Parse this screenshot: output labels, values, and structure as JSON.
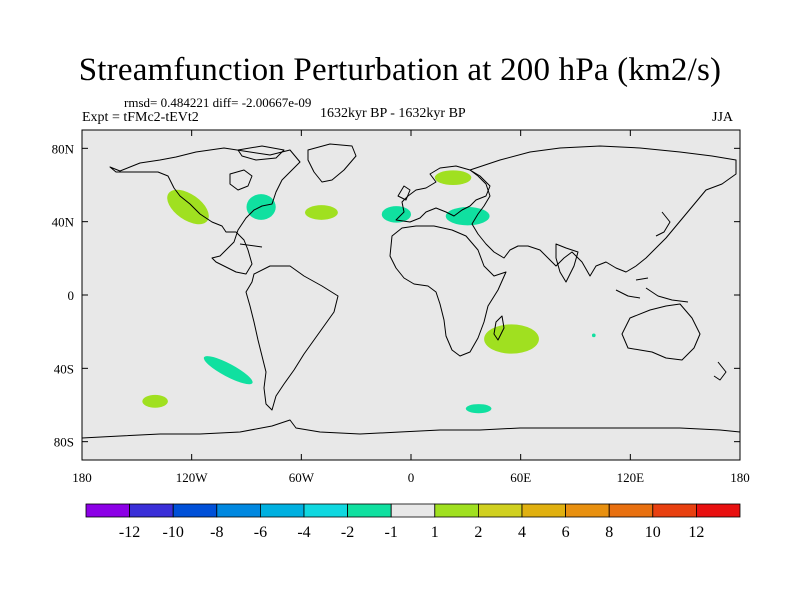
{
  "title": "Streamfunction Perturbation at 200 hPa (km2/s)",
  "stats": "rmsd= 0.484221 diff= -2.00667e-09",
  "experiment": "Expt = tFMc2-tEVt2",
  "period": "1632kyr BP - 1632kyr BP",
  "season": "JJA",
  "map": {
    "lon_range": [
      -180,
      180
    ],
    "lat_range": [
      -90,
      90
    ],
    "background": "#e8e8e8",
    "x_ticks": [
      {
        "value": -180,
        "label": "180"
      },
      {
        "value": -120,
        "label": "120W"
      },
      {
        "value": -60,
        "label": "60W"
      },
      {
        "value": 0,
        "label": "0"
      },
      {
        "value": 60,
        "label": "60E"
      },
      {
        "value": 120,
        "label": "120E"
      },
      {
        "value": 180,
        "label": "180"
      }
    ],
    "y_ticks": [
      {
        "value": 80,
        "label": "80N"
      },
      {
        "value": 40,
        "label": "40N"
      },
      {
        "value": 0,
        "label": "0"
      },
      {
        "value": -40,
        "label": "40S"
      },
      {
        "value": -80,
        "label": "80S"
      }
    ],
    "anomalies": [
      {
        "name": "north-america-west",
        "lon": -122,
        "lat": 48,
        "rlon": 13,
        "rlat": 7,
        "rot": 35,
        "class": "1 to 2"
      },
      {
        "name": "great-lakes",
        "lon": -82,
        "lat": 48,
        "rlon": 8,
        "rlat": 7,
        "rot": 0,
        "class": "-2 to -1"
      },
      {
        "name": "north-atlantic-west",
        "lon": -49,
        "lat": 45,
        "rlon": 9,
        "rlat": 4,
        "rot": 0,
        "class": "1 to 2"
      },
      {
        "name": "western-europe",
        "lon": -8,
        "lat": 44,
        "rlon": 8,
        "rlat": 4.5,
        "rot": 0,
        "class": "-2 to -1"
      },
      {
        "name": "scandinavia",
        "lon": 23,
        "lat": 64,
        "rlon": 10,
        "rlat": 4,
        "rot": 0,
        "class": "1 to 2"
      },
      {
        "name": "black-sea",
        "lon": 31,
        "lat": 43,
        "rlon": 12,
        "rlat": 5,
        "rot": 0,
        "class": "-2 to -1"
      },
      {
        "name": "south-africa",
        "lon": 55,
        "lat": -24,
        "rlon": 15,
        "rlat": 8,
        "rot": 0,
        "class": "1 to 2"
      },
      {
        "name": "south-pacific",
        "lon": -100,
        "lat": -41,
        "rlon": 15,
        "rlat": 3.5,
        "rot": 28,
        "class": "-2 to -1"
      },
      {
        "name": "southwest-pacific",
        "lon": -140,
        "lat": -58,
        "rlon": 7,
        "rlat": 3.5,
        "rot": 0,
        "class": "1 to 2"
      },
      {
        "name": "southern-ocean",
        "lon": 37,
        "lat": -62,
        "rlon": 7,
        "rlat": 2.5,
        "rot": 0,
        "class": "-2 to -1"
      },
      {
        "name": "indian-ocean-small",
        "lon": 100,
        "lat": -22,
        "rlon": 1,
        "rlat": 1,
        "rot": 0,
        "class": "-2 to -1"
      }
    ]
  },
  "colorbar": {
    "colors": [
      "#8c00e6",
      "#3a2fd8",
      "#0050d8",
      "#0088e0",
      "#00b0e0",
      "#10d8e0",
      "#10e0a0",
      "#e8e8e8",
      "#a0e020",
      "#d0d020",
      "#e0b010",
      "#e89010",
      "#e87010",
      "#e84010",
      "#e81010"
    ],
    "labels": [
      "-12",
      "-10",
      "-8",
      "-6",
      "-4",
      "-2",
      "-1",
      "1",
      "2",
      "4",
      "6",
      "8",
      "10",
      "12"
    ]
  }
}
